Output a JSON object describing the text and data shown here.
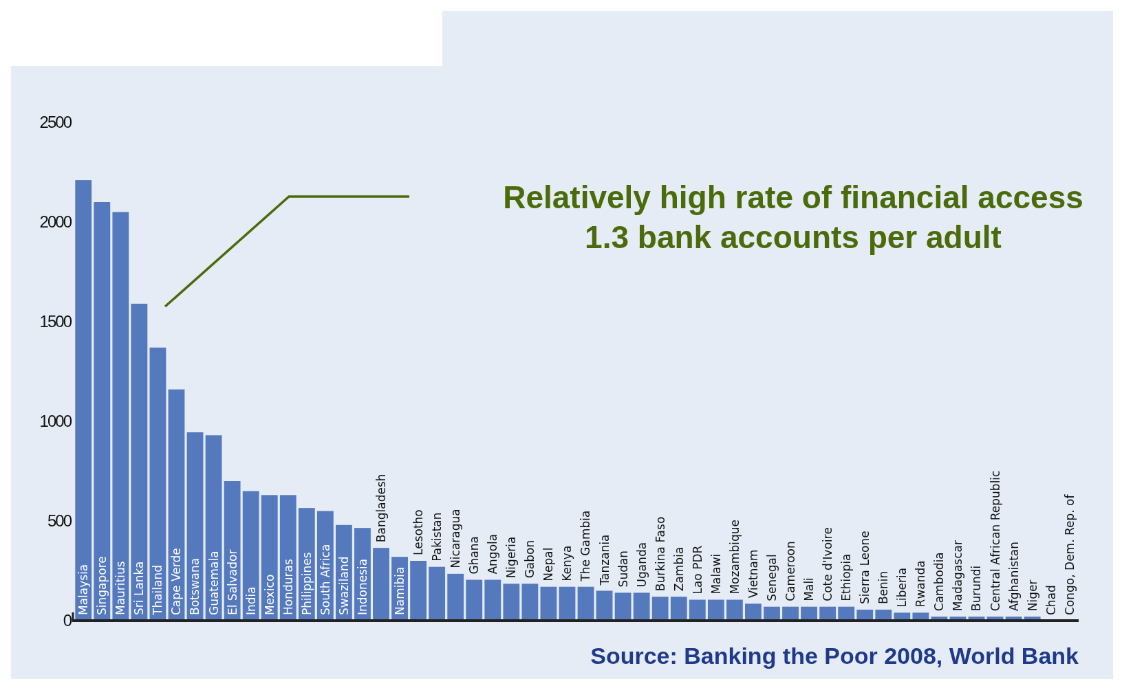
{
  "chart_data": {
    "type": "bar",
    "categories": [
      "Malaysia",
      "Singapore",
      "Mauritius",
      "Sri Lanka",
      "Thailand",
      "Cape Verde",
      "Botswana",
      "Guatemala",
      "El Salvador",
      "India",
      "Mexico",
      "Honduras",
      "Philippines",
      "South Africa",
      "Swaziland",
      "Indonesia",
      "Bangladesh",
      "Namibia",
      "Lesotho",
      "Pakistan",
      "Nicaragua",
      "Ghana",
      "Angola",
      "Nigeria",
      "Gabon",
      "Nepal",
      "Kenya",
      "The Gambia",
      "Tanzania",
      "Sudan",
      "Uganda",
      "Burkina Faso",
      "Zambia",
      "Lao PDR",
      "Malawi",
      "Mozambique",
      "Vietnam",
      "Senegal",
      "Cameroon",
      "Mali",
      "Cote d'Ivoire",
      "Ethiopia",
      "Sierra Leone",
      "Benin",
      "Liberia",
      "Rwanda",
      "Cambodia",
      "Madagascar",
      "Burundi",
      "Central African Republic",
      "Afghanistan",
      "Niger",
      "Chad",
      "Congo, Dem. Rep. of"
    ],
    "values": [
      2210,
      2100,
      2050,
      1590,
      1370,
      1160,
      945,
      930,
      700,
      650,
      630,
      630,
      565,
      550,
      480,
      465,
      365,
      320,
      300,
      270,
      235,
      205,
      205,
      185,
      185,
      170,
      170,
      170,
      150,
      140,
      140,
      120,
      120,
      105,
      105,
      105,
      85,
      70,
      70,
      70,
      70,
      70,
      55,
      55,
      40,
      40,
      20,
      20,
      20,
      20,
      20,
      20,
      null,
      null
    ],
    "color": "#5479bd",
    "ylim": [
      0,
      2500
    ],
    "yticks": [
      0,
      500,
      1000,
      1500,
      2000,
      2500
    ],
    "grid": false,
    "annotations": [
      "Relatively high rate of financial access\n1.3 bank accounts per adult",
      "Source: Banking the Poor 2008, World Bank"
    ]
  }
}
